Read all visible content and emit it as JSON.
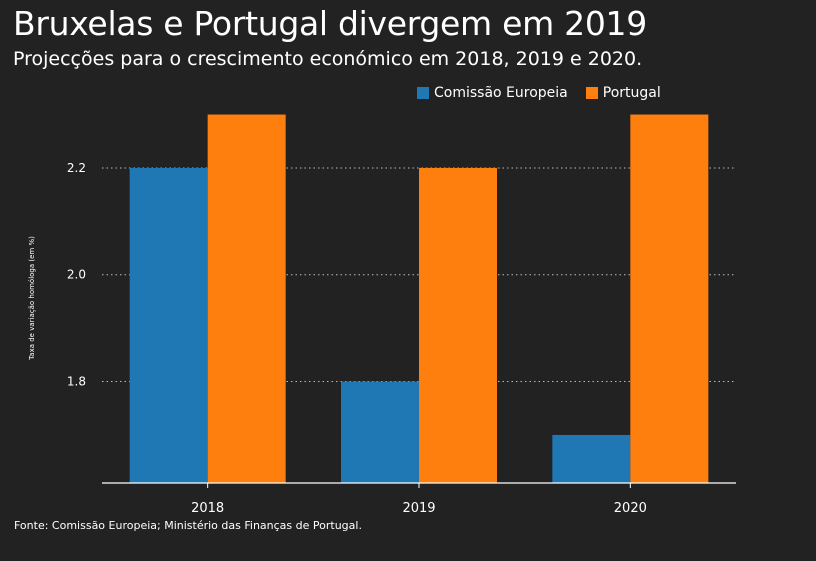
{
  "header": {
    "title": "Bruxelas e Portugal divergem em 2019",
    "subtitle": "Projecções para o crescimento económico em 2018, 2019 e 2020."
  },
  "legend": {
    "items": [
      {
        "label": "Comissão Europeia",
        "color": "#1f77b4"
      },
      {
        "label": "Portugal",
        "color": "#ff7f0e"
      }
    ]
  },
  "footer": {
    "source": "Fonte: Comissão Europeia; Ministério das Finanças de Portugal."
  },
  "chart_data": {
    "type": "bar",
    "categories": [
      "2018",
      "2019",
      "2020"
    ],
    "series": [
      {
        "name": "Comissão Europeia",
        "values": [
          2.2,
          1.8,
          1.7
        ],
        "color": "#1f77b4"
      },
      {
        "name": "Portugal",
        "values": [
          2.3,
          2.2,
          2.3
        ],
        "color": "#ff7f0e"
      }
    ],
    "ylabel": "Taxa de variação homóloga (em %)",
    "yticks": [
      "1.8",
      "2.0",
      "2.2"
    ],
    "ylim": [
      1.61,
      2.3
    ],
    "grid": "horizontal dotted",
    "legend_position": "top-right"
  }
}
